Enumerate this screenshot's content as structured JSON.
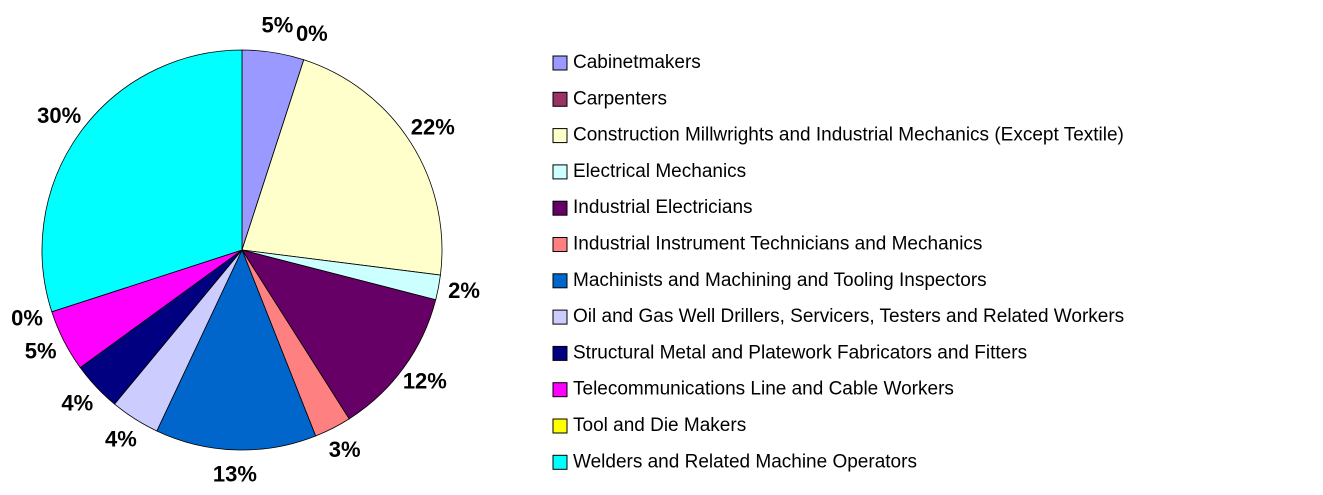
{
  "chart_data": {
    "type": "pie",
    "categories": [
      "Cabinetmakers",
      "Carpenters",
      "Construction Millwrights and Industrial Mechanics (Except Textile)",
      "Electrical Mechanics",
      "Industrial Electricians",
      "Industrial Instrument Technicians and Mechanics",
      "Machinists and Machining and Tooling Inspectors",
      "Oil and Gas Well Drillers, Servicers, Testers and Related Workers",
      "Structural Metal and Platework Fabricators and Fitters",
      "Telecommunications Line and Cable Workers",
      "Tool and Die Makers",
      "Welders and Related Machine Operators"
    ],
    "values": [
      5,
      0,
      22,
      2,
      12,
      3,
      13,
      4,
      4,
      5,
      0,
      30
    ],
    "value_labels": [
      "5%",
      "0%",
      "22%",
      "2%",
      "12%",
      "3%",
      "13%",
      "4%",
      "4%",
      "5%",
      "0%",
      "30%"
    ],
    "colors": [
      "#9999ff",
      "#993366",
      "#ffffcc",
      "#ccffff",
      "#660066",
      "#ff8080",
      "#0066cc",
      "#ccccff",
      "#000080",
      "#ff00ff",
      "#ffff00",
      "#00ffff"
    ],
    "legend": "right"
  }
}
